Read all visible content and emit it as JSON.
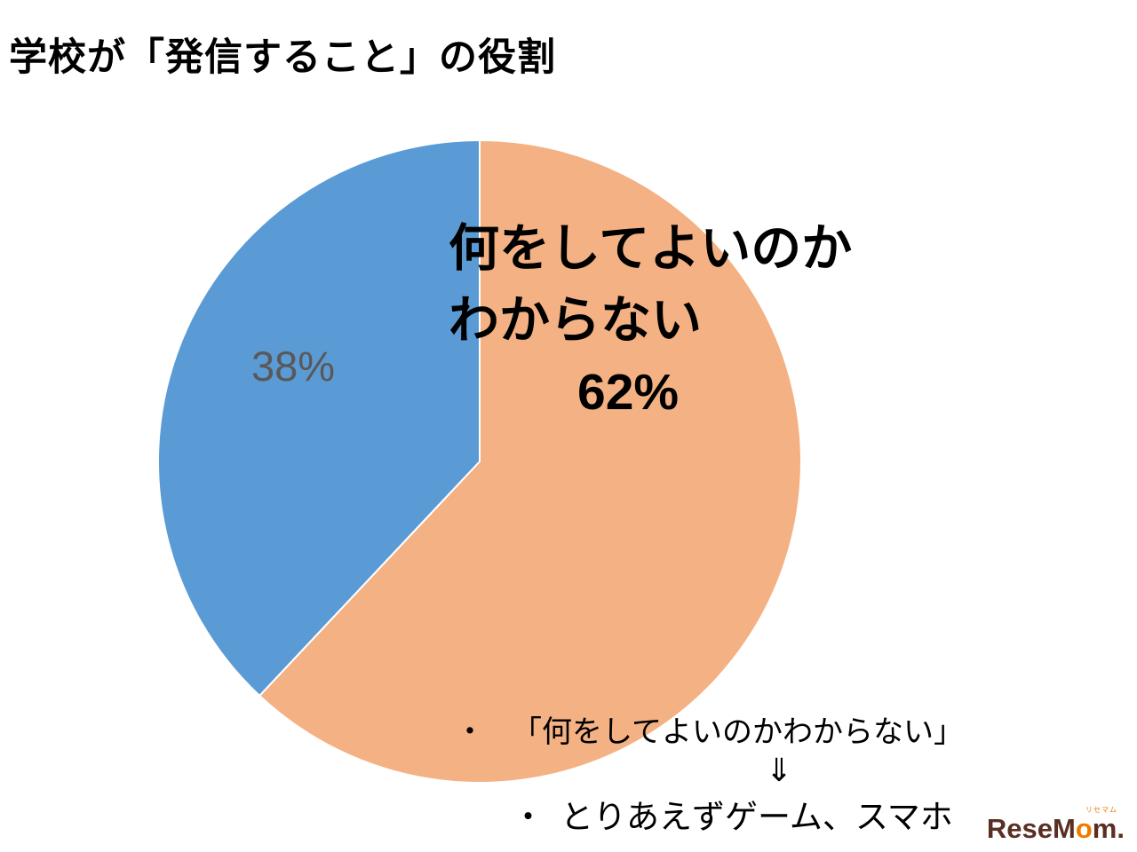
{
  "page": {
    "title": "学校が「発信すること」の役割"
  },
  "chart_data": {
    "type": "pie",
    "title": "学校が「発信すること」の役割",
    "start_angle_deg": 0,
    "direction": "clockwise",
    "slices": [
      {
        "label": "何をしてよいのかわからない",
        "value": 62,
        "color": "#F4B183"
      },
      {
        "label": "",
        "value": 38,
        "color": "#5B9BD5"
      }
    ],
    "slice_border_color": "#FFFFFF",
    "legend": "none"
  },
  "overlays": {
    "pct_38": "38%",
    "label_line1": "何をしてよいのか",
    "label_line2": "わからない",
    "label_value": "62%"
  },
  "annotations": {
    "bullet_marker": "・",
    "bullet1": "「何をしてよいのかわからない」",
    "arrow": "⇓",
    "bullet2": "とりあえずゲーム、スマホ"
  },
  "logo": {
    "prefix": "ReseM",
    "o": "o",
    "suffix": "m",
    "period": ".",
    "ruby": "リセマム"
  },
  "colors": {
    "orange": "#F4B183",
    "blue": "#5B9BD5",
    "gray_label": "#595959",
    "logo_brown": "#5a2f23",
    "logo_orange": "#ee7b00"
  }
}
